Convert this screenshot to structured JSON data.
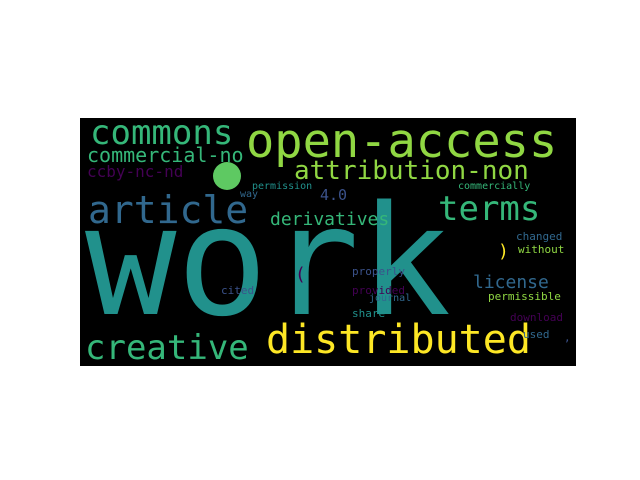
{
  "word_cloud": {
    "background": "#000000",
    "dot_color": "#5ec962",
    "words": [
      {
        "text": "work",
        "color": "#21918c"
      },
      {
        "text": "open-access",
        "color": "#90d743"
      },
      {
        "text": "distributed",
        "color": "#fde725"
      },
      {
        "text": "creative",
        "color": "#35b779"
      },
      {
        "text": "article",
        "color": "#31688e"
      },
      {
        "text": "commons",
        "color": "#35b779"
      },
      {
        "text": "terms",
        "color": "#35b779"
      },
      {
        "text": "attribution-non",
        "color": "#90d743"
      },
      {
        "text": "commercial-no",
        "color": "#35b779"
      },
      {
        "text": "ccby-nc-nd",
        "color": "#440154"
      },
      {
        "text": "derivatives",
        "color": "#35b779"
      },
      {
        "text": "4.0",
        "color": "#3b528b"
      },
      {
        "text": "license",
        "color": "#31688e"
      },
      {
        "text": "(",
        "color": "#440154"
      },
      {
        "text": ")",
        "color": "#fde725"
      },
      {
        "text": "changed",
        "color": "#31688e"
      },
      {
        "text": "without",
        "color": "#90d743"
      },
      {
        "text": "commercially",
        "color": "#35b779"
      },
      {
        "text": "way",
        "color": "#31688e"
      },
      {
        "text": "permission",
        "color": "#21918c"
      },
      {
        "text": "properly",
        "color": "#3b528b"
      },
      {
        "text": "provided",
        "color": "#440154"
      },
      {
        "text": "permissible",
        "color": "#90d743"
      },
      {
        "text": "cited",
        "color": "#3b528b"
      },
      {
        "text": "journal",
        "color": "#31688e"
      },
      {
        "text": "share",
        "color": "#21918c"
      },
      {
        "text": "download",
        "color": "#440154"
      },
      {
        "text": "used",
        "color": "#31688e"
      },
      {
        "text": ",",
        "color": "#3b528b"
      }
    ]
  }
}
